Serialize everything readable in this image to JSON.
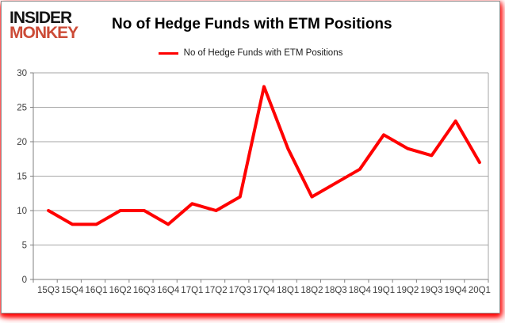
{
  "brand": {
    "line1": "INSIDER",
    "line2": "MONKEY",
    "line2_color": "#cc4b37"
  },
  "header": {
    "title": "No of Hedge Funds with ETM Positions"
  },
  "legend": {
    "label": "No of Hedge Funds with ETM Positions",
    "line_color": "#ff0000"
  },
  "chart_data": {
    "type": "line",
    "title": "No of Hedge Funds with ETM Positions",
    "categories": [
      "15Q3",
      "15Q4",
      "16Q1",
      "16Q2",
      "16Q3",
      "16Q4",
      "17Q1",
      "17Q2",
      "17Q3",
      "17Q4",
      "18Q1",
      "18Q2",
      "18Q3",
      "18Q4",
      "19Q1",
      "19Q2",
      "19Q3",
      "19Q4",
      "20Q1"
    ],
    "series": [
      {
        "name": "No of Hedge Funds with ETM Positions",
        "color": "#ff0000",
        "values": [
          10,
          8,
          8,
          10,
          10,
          8,
          11,
          10,
          12,
          28,
          19,
          12,
          14,
          16,
          21,
          19,
          18,
          23,
          17
        ]
      }
    ],
    "xlabel": "",
    "ylabel": "",
    "ylim": [
      0,
      30
    ],
    "yticks": [
      0,
      5,
      10,
      15,
      20,
      25,
      30
    ],
    "grid": true,
    "legend_position": "top",
    "gridline_color": "#a6a6a6",
    "axis_color": "#808080",
    "tick_label_color": "#3f3f3f"
  }
}
